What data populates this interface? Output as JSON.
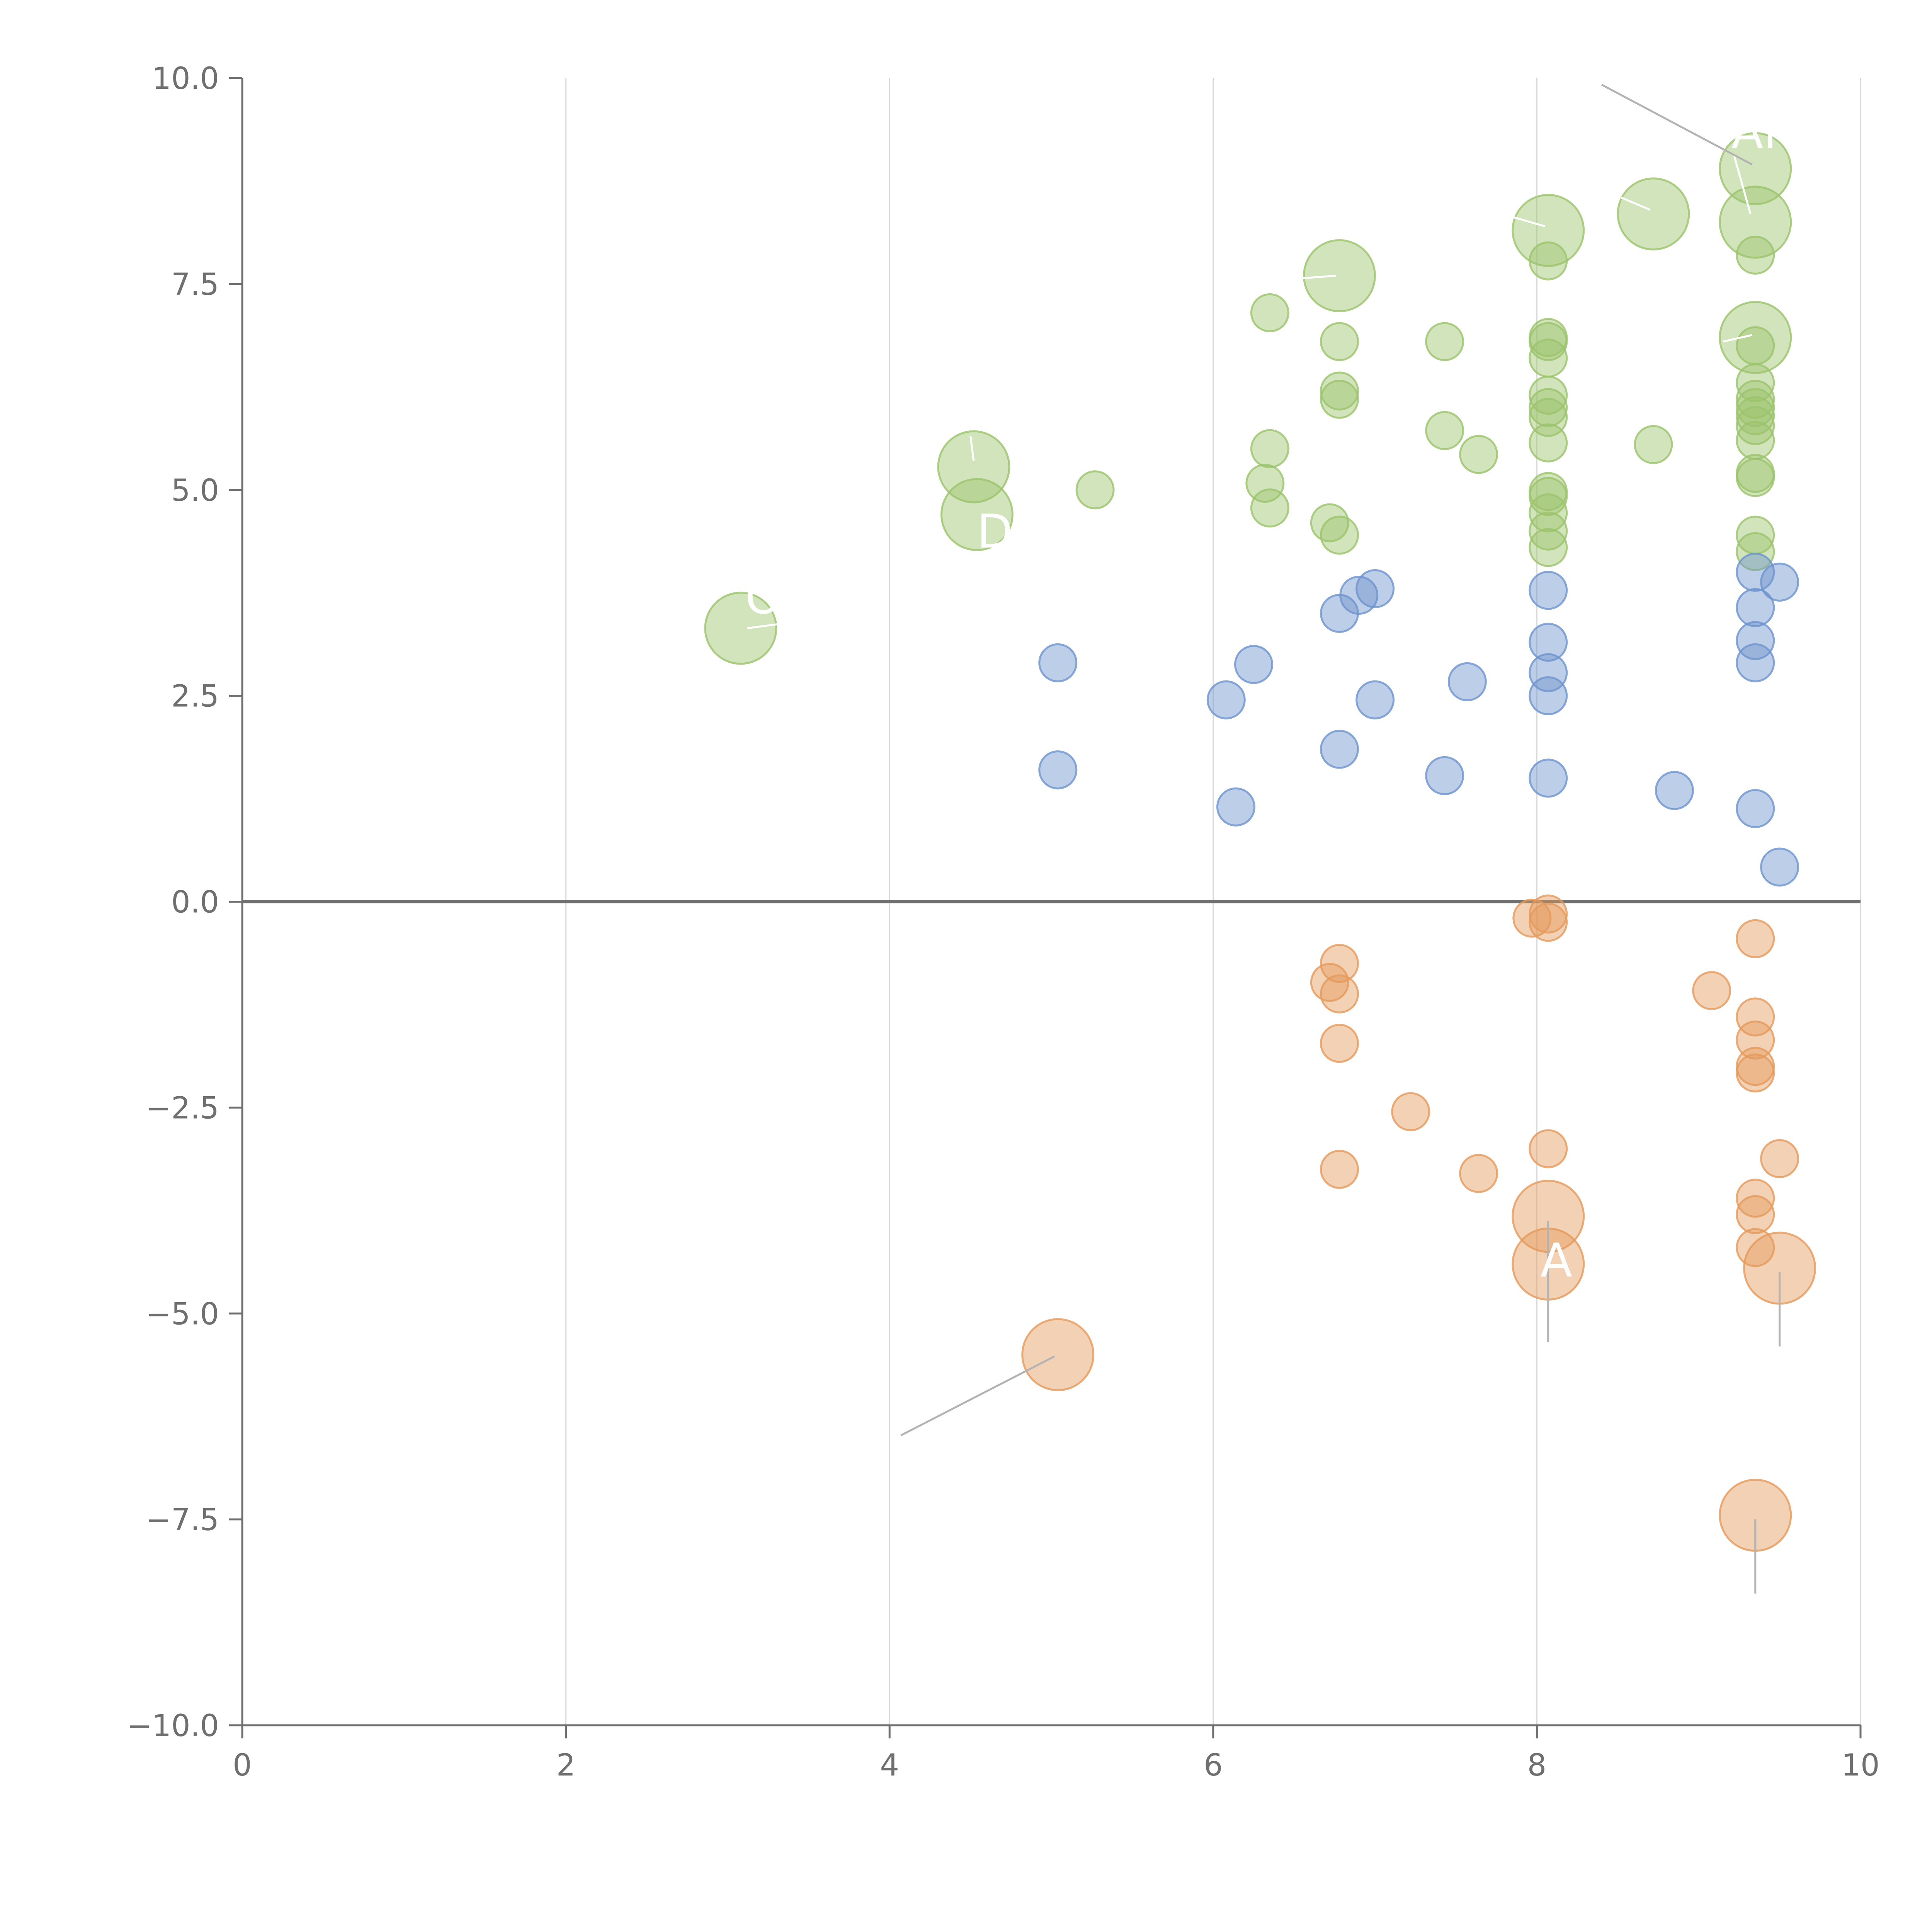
{
  "chart_data": {
    "type": "scatter",
    "title": "",
    "xlabel": "",
    "ylabel": "",
    "xlim": [
      0,
      10
    ],
    "ylim": [
      -10,
      10
    ],
    "x_ticks": [
      "0",
      "2",
      "4",
      "6",
      "8",
      "10"
    ],
    "y_ticks": [
      "10.0",
      "7.5",
      "5.0",
      "2.5",
      "0.0",
      "−2.5",
      "−5.0",
      "−7.5",
      "−10.0"
    ],
    "grid": "vertical",
    "legend": "none",
    "colors": {
      "green": "#9bc36b",
      "blue": "#6d93cd",
      "orange": "#e49a5b",
      "grid": "#d9d9d9",
      "axis": "#6f6f6f",
      "zero_line": "#707070",
      "leader": "#b3b3b3"
    },
    "series": [
      {
        "name": "green",
        "color_key": "green",
        "points": [
          {
            "x": 9.35,
            "y": 8.9,
            "size": "large"
          },
          {
            "x": 9.35,
            "y": 8.25,
            "size": "large"
          },
          {
            "x": 8.72,
            "y": 8.35,
            "size": "large"
          },
          {
            "x": 8.07,
            "y": 8.15,
            "size": "large"
          },
          {
            "x": 6.78,
            "y": 7.6,
            "size": "large"
          },
          {
            "x": 9.35,
            "y": 6.85,
            "size": "large"
          },
          {
            "x": 4.52,
            "y": 5.28,
            "size": "large"
          },
          {
            "x": 4.54,
            "y": 4.7,
            "size": "large"
          },
          {
            "x": 3.08,
            "y": 3.32,
            "size": "large"
          },
          {
            "x": 9.35,
            "y": 7.85,
            "size": "small"
          },
          {
            "x": 8.07,
            "y": 7.78,
            "size": "small"
          },
          {
            "x": 6.35,
            "y": 7.15,
            "size": "small"
          },
          {
            "x": 6.78,
            "y": 6.8,
            "size": "small"
          },
          {
            "x": 7.43,
            "y": 6.8,
            "size": "small"
          },
          {
            "x": 8.07,
            "y": 6.85,
            "size": "small"
          },
          {
            "x": 8.07,
            "y": 6.8,
            "size": "small"
          },
          {
            "x": 9.35,
            "y": 6.75,
            "size": "small"
          },
          {
            "x": 8.07,
            "y": 6.6,
            "size": "small"
          },
          {
            "x": 9.35,
            "y": 6.3,
            "size": "small"
          },
          {
            "x": 6.78,
            "y": 6.2,
            "size": "small"
          },
          {
            "x": 6.78,
            "y": 6.1,
            "size": "small"
          },
          {
            "x": 8.07,
            "y": 6.15,
            "size": "small"
          },
          {
            "x": 9.35,
            "y": 6.1,
            "size": "small"
          },
          {
            "x": 8.07,
            "y": 6.0,
            "size": "small"
          },
          {
            "x": 9.35,
            "y": 6.0,
            "size": "small"
          },
          {
            "x": 8.07,
            "y": 5.88,
            "size": "small"
          },
          {
            "x": 9.35,
            "y": 5.9,
            "size": "small"
          },
          {
            "x": 9.35,
            "y": 5.78,
            "size": "small"
          },
          {
            "x": 7.43,
            "y": 5.72,
            "size": "small"
          },
          {
            "x": 8.07,
            "y": 5.57,
            "size": "small"
          },
          {
            "x": 8.72,
            "y": 5.55,
            "size": "small"
          },
          {
            "x": 9.35,
            "y": 5.6,
            "size": "small"
          },
          {
            "x": 6.35,
            "y": 5.5,
            "size": "small"
          },
          {
            "x": 7.64,
            "y": 5.43,
            "size": "small"
          },
          {
            "x": 9.35,
            "y": 5.2,
            "size": "small"
          },
          {
            "x": 9.35,
            "y": 5.15,
            "size": "small"
          },
          {
            "x": 6.32,
            "y": 5.08,
            "size": "small"
          },
          {
            "x": 5.27,
            "y": 5.0,
            "size": "small"
          },
          {
            "x": 8.07,
            "y": 4.98,
            "size": "small"
          },
          {
            "x": 8.07,
            "y": 4.92,
            "size": "small"
          },
          {
            "x": 6.35,
            "y": 4.78,
            "size": "small"
          },
          {
            "x": 8.07,
            "y": 4.72,
            "size": "small"
          },
          {
            "x": 6.72,
            "y": 4.6,
            "size": "small"
          },
          {
            "x": 8.07,
            "y": 4.5,
            "size": "small"
          },
          {
            "x": 6.78,
            "y": 4.45,
            "size": "small"
          },
          {
            "x": 9.35,
            "y": 4.45,
            "size": "small"
          },
          {
            "x": 8.07,
            "y": 4.3,
            "size": "small"
          },
          {
            "x": 9.35,
            "y": 4.25,
            "size": "small"
          }
        ]
      },
      {
        "name": "blue",
        "color_key": "blue",
        "points": [
          {
            "x": 9.35,
            "y": 4.0,
            "size": "small"
          },
          {
            "x": 9.5,
            "y": 3.88,
            "size": "small"
          },
          {
            "x": 7.0,
            "y": 3.8,
            "size": "small"
          },
          {
            "x": 8.07,
            "y": 3.78,
            "size": "small"
          },
          {
            "x": 6.9,
            "y": 3.72,
            "size": "small"
          },
          {
            "x": 9.35,
            "y": 3.57,
            "size": "small"
          },
          {
            "x": 6.78,
            "y": 3.5,
            "size": "small"
          },
          {
            "x": 8.07,
            "y": 3.15,
            "size": "small"
          },
          {
            "x": 9.35,
            "y": 3.17,
            "size": "small"
          },
          {
            "x": 5.04,
            "y": 2.9,
            "size": "small"
          },
          {
            "x": 6.25,
            "y": 2.88,
            "size": "small"
          },
          {
            "x": 9.35,
            "y": 2.9,
            "size": "small"
          },
          {
            "x": 8.07,
            "y": 2.78,
            "size": "small"
          },
          {
            "x": 7.57,
            "y": 2.67,
            "size": "small"
          },
          {
            "x": 8.07,
            "y": 2.5,
            "size": "small"
          },
          {
            "x": 6.08,
            "y": 2.45,
            "size": "small"
          },
          {
            "x": 7.0,
            "y": 2.45,
            "size": "small"
          },
          {
            "x": 6.78,
            "y": 1.85,
            "size": "small"
          },
          {
            "x": 5.04,
            "y": 1.6,
            "size": "small"
          },
          {
            "x": 7.43,
            "y": 1.53,
            "size": "small"
          },
          {
            "x": 8.07,
            "y": 1.5,
            "size": "small"
          },
          {
            "x": 8.85,
            "y": 1.35,
            "size": "small"
          },
          {
            "x": 6.14,
            "y": 1.15,
            "size": "small"
          },
          {
            "x": 9.35,
            "y": 1.13,
            "size": "small"
          },
          {
            "x": 9.5,
            "y": 0.42,
            "size": "small"
          }
        ]
      },
      {
        "name": "orange",
        "color_key": "orange",
        "points": [
          {
            "x": 7.97,
            "y": -0.2,
            "size": "small"
          },
          {
            "x": 8.07,
            "y": -0.15,
            "size": "small"
          },
          {
            "x": 8.07,
            "y": -0.25,
            "size": "small"
          },
          {
            "x": 9.35,
            "y": -0.45,
            "size": "small"
          },
          {
            "x": 6.78,
            "y": -0.75,
            "size": "small"
          },
          {
            "x": 6.72,
            "y": -0.98,
            "size": "small"
          },
          {
            "x": 6.78,
            "y": -1.12,
            "size": "small"
          },
          {
            "x": 9.08,
            "y": -1.08,
            "size": "small"
          },
          {
            "x": 9.35,
            "y": -1.4,
            "size": "small"
          },
          {
            "x": 9.35,
            "y": -1.68,
            "size": "small"
          },
          {
            "x": 6.78,
            "y": -1.72,
            "size": "small"
          },
          {
            "x": 9.35,
            "y": -2.0,
            "size": "small"
          },
          {
            "x": 9.35,
            "y": -2.08,
            "size": "small"
          },
          {
            "x": 7.22,
            "y": -2.55,
            "size": "small"
          },
          {
            "x": 8.07,
            "y": -3.0,
            "size": "small"
          },
          {
            "x": 9.5,
            "y": -3.12,
            "size": "small"
          },
          {
            "x": 6.78,
            "y": -3.25,
            "size": "small"
          },
          {
            "x": 7.64,
            "y": -3.3,
            "size": "small"
          },
          {
            "x": 9.35,
            "y": -3.6,
            "size": "small"
          },
          {
            "x": 9.35,
            "y": -3.8,
            "size": "small"
          },
          {
            "x": 9.35,
            "y": -4.2,
            "size": "small"
          },
          {
            "x": 8.07,
            "y": -3.82,
            "size": "large"
          },
          {
            "x": 8.07,
            "y": -4.4,
            "size": "large"
          },
          {
            "x": 9.5,
            "y": -4.45,
            "size": "large"
          },
          {
            "x": 5.04,
            "y": -5.5,
            "size": "large"
          },
          {
            "x": 9.35,
            "y": -7.45,
            "size": "large"
          }
        ]
      }
    ],
    "point_labels": [
      {
        "text": "AR",
        "x": 9.4,
        "y": 9.15
      },
      {
        "text": "D",
        "x": 4.65,
        "y": 4.3
      },
      {
        "text": "O",
        "x": 3.22,
        "y": 3.5
      },
      {
        "text": "A",
        "x": 8.12,
        "y": -4.55
      }
    ],
    "leader_lines": [
      {
        "x1": 8.4,
        "y1": 9.92,
        "x2": 9.33,
        "y2": 8.95,
        "color_key": "leader"
      },
      {
        "x1": 9.22,
        "y1": 9.05,
        "x2": 9.32,
        "y2": 8.35,
        "color_key": "white"
      },
      {
        "x1": 8.52,
        "y1": 8.55,
        "x2": 8.7,
        "y2": 8.4,
        "color_key": "white"
      },
      {
        "x1": 7.82,
        "y1": 8.33,
        "x2": 8.05,
        "y2": 8.2,
        "color_key": "white"
      },
      {
        "x1": 6.55,
        "y1": 7.57,
        "x2": 6.76,
        "y2": 7.6,
        "color_key": "white"
      },
      {
        "x1": 9.15,
        "y1": 6.8,
        "x2": 9.33,
        "y2": 6.88,
        "color_key": "white"
      },
      {
        "x1": 4.5,
        "y1": 5.65,
        "x2": 4.52,
        "y2": 5.35,
        "color_key": "white"
      },
      {
        "x1": 3.12,
        "y1": 3.32,
        "x2": 3.35,
        "y2": 3.38,
        "color_key": "white"
      },
      {
        "x1": 8.07,
        "y1": -3.88,
        "x2": 8.07,
        "y2": -5.35,
        "color_key": "leader"
      },
      {
        "x1": 9.5,
        "y1": -4.5,
        "x2": 9.5,
        "y2": -5.4,
        "color_key": "leader"
      },
      {
        "x1": 9.35,
        "y1": -7.5,
        "x2": 9.35,
        "y2": -8.4,
        "color_key": "leader"
      },
      {
        "x1": 5.02,
        "y1": -5.52,
        "x2": 4.07,
        "y2": -6.48,
        "color_key": "leader"
      }
    ]
  }
}
